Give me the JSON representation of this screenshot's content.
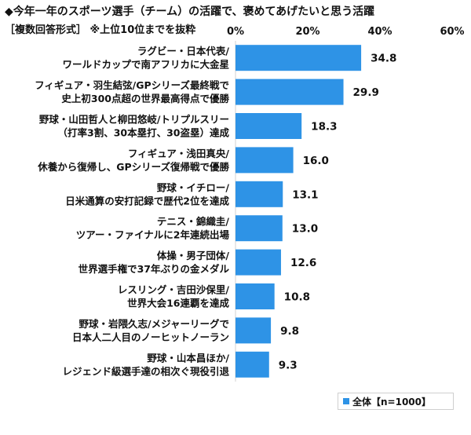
{
  "chart_data": {
    "type": "bar",
    "orientation": "horizontal",
    "title": "◆今年一年のスポーツ選手（チーム）の活躍で、褒めてあげたいと思う活躍",
    "subtitle": "［複数回答形式］ ※上位10位までを抜粋",
    "categories": [
      [
        "ラグビー・日本代表/",
        "ワールドカップで南アフリカに大金星"
      ],
      [
        "フィギュア・羽生結弦/GPシリーズ最終戦で",
        "史上初300点超の世界最高得点で優勝"
      ],
      [
        "野球・山田哲人と柳田悠岐/トリプルスリー",
        "（打率3割、30本塁打、30盗塁）達成"
      ],
      [
        "フィギュア・浅田真央/",
        "休養から復帰し、GPシリーズ復帰戦で優勝"
      ],
      [
        "野球・イチロー/",
        "日米通算の安打記録で歴代2位を達成"
      ],
      [
        "テニス・錦織圭/",
        "ツアー・ファイナルに2年連続出場"
      ],
      [
        "体操・男子団体/",
        "世界選手権で37年ぶりの金メダル"
      ],
      [
        "レスリング・吉田沙保里/",
        "世界大会16連覇を達成"
      ],
      [
        "野球・岩隈久志/メジャーリーグで",
        "日本人二人目のノーヒットノーラン"
      ],
      [
        "野球・山本昌ほか/",
        "レジェンド級選手達の相次ぐ現役引退"
      ]
    ],
    "series": [
      {
        "name": "全体【n=1000】",
        "values": [
          34.8,
          29.9,
          18.3,
          16.0,
          13.1,
          13.0,
          12.6,
          10.8,
          9.8,
          9.3
        ]
      }
    ],
    "value_labels": [
      "34.8",
      "29.9",
      "18.3",
      "16.0",
      "13.1",
      "13.0",
      "12.6",
      "10.8",
      "9.8",
      "9.3"
    ],
    "xlim": [
      0,
      60
    ],
    "xticks": [
      "0%",
      "20%",
      "40%",
      "60%"
    ],
    "bar_color": "#2e93e6",
    "grid": false,
    "legend_position": "bottom-right"
  }
}
